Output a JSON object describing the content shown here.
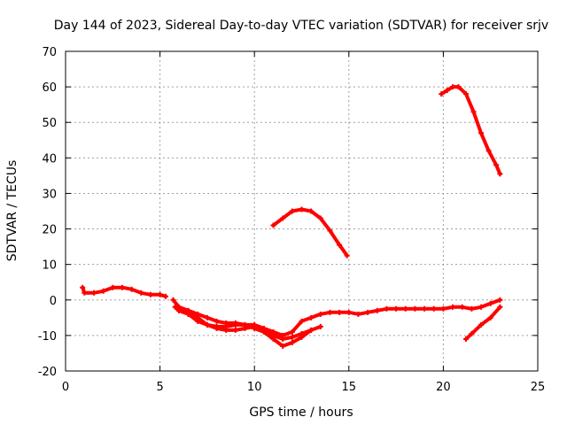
{
  "chart_data": {
    "type": "line",
    "title": "Day 144 of 2023, Sidereal Day-to-day VTEC variation (SDTVAR) for receiver srjv",
    "xlabel": "GPS time / hours",
    "ylabel": "SDTVAR / TECUs",
    "xlim": [
      0,
      25
    ],
    "ylim": [
      -20,
      70
    ],
    "x_ticks": [
      0,
      5,
      10,
      15,
      20,
      25
    ],
    "y_ticks": [
      -20,
      -10,
      0,
      10,
      20,
      30,
      40,
      50,
      60,
      70
    ],
    "grid": true,
    "legend": "none",
    "color": "#ff0000",
    "series": [
      {
        "name": "track-1",
        "x": [
          0.9,
          1.0,
          1.5,
          2.0,
          2.5,
          3.0,
          3.5,
          4.0,
          4.5,
          5.0,
          5.3
        ],
        "y": [
          3.5,
          2,
          2,
          2.5,
          3.5,
          3.5,
          3,
          2,
          1.5,
          1.5,
          1
        ]
      },
      {
        "name": "track-2",
        "x": [
          5.7,
          6.0,
          6.5,
          7.0,
          7.5,
          8.0,
          8.5,
          9.0,
          9.5,
          10.0,
          10.5,
          11.0,
          11.5,
          12.0,
          12.5,
          13.0,
          13.5,
          14.0,
          14.5,
          15.0,
          15.5,
          16.0,
          16.5,
          17.0,
          17.5,
          18.0,
          18.5,
          19.0,
          19.5,
          20.0,
          20.5,
          21.0,
          21.5,
          22.0,
          22.5,
          23.0
        ],
        "y": [
          0,
          -2,
          -3,
          -4,
          -5,
          -6,
          -6.5,
          -6.5,
          -7,
          -7,
          -8,
          -9,
          -10,
          -9,
          -6,
          -5,
          -4,
          -3.5,
          -3.5,
          -3.5,
          -4,
          -3.5,
          -3,
          -2.5,
          -2.5,
          -2.5,
          -2.5,
          -2.5,
          -2.5,
          -2.5,
          -2,
          -2,
          -2.5,
          -2,
          -1,
          0
        ]
      },
      {
        "name": "track-3",
        "x": [
          5.8,
          6.0,
          6.5,
          7.0,
          7.5,
          8.0,
          8.5,
          9.0,
          9.5,
          10.0,
          10.5,
          11.0,
          11.5,
          12.0,
          12.5,
          13.0,
          13.5
        ],
        "y": [
          -2,
          -3,
          -4,
          -5,
          -7,
          -8,
          -8.5,
          -8.5,
          -8,
          -7.5,
          -8.5,
          -10,
          -11,
          -10.5,
          -9.5,
          -8.5,
          -7.5
        ]
      },
      {
        "name": "track-4",
        "x": [
          6.0,
          6.5,
          7.0,
          7.5,
          8.0,
          8.5,
          9.0,
          9.5,
          10.0,
          10.5,
          11.0,
          11.5,
          12.0,
          12.5,
          13.0
        ],
        "y": [
          -3,
          -4,
          -6,
          -7,
          -7.5,
          -7.5,
          -7,
          -7,
          -8,
          -9,
          -11,
          -13,
          -12,
          -10.5,
          -8.5
        ]
      },
      {
        "name": "track-5",
        "x": [
          21.2,
          21.5,
          22.0,
          22.5,
          23.0
        ],
        "y": [
          -11,
          -9.5,
          -7,
          -5,
          -2
        ]
      },
      {
        "name": "track-6",
        "x": [
          11.0,
          11.5,
          12.0,
          12.5,
          13.0,
          13.5,
          14.0,
          14.5,
          14.9
        ],
        "y": [
          21,
          23,
          25,
          25.5,
          25,
          23,
          19.5,
          15.5,
          12.5
        ]
      },
      {
        "name": "track-7",
        "x": [
          19.9,
          20.2,
          20.5,
          20.8,
          21.2,
          21.6,
          22.0,
          22.4,
          22.8,
          23.0
        ],
        "y": [
          58,
          59,
          60,
          60,
          58,
          53,
          47,
          42,
          38,
          35.5
        ]
      }
    ]
  }
}
